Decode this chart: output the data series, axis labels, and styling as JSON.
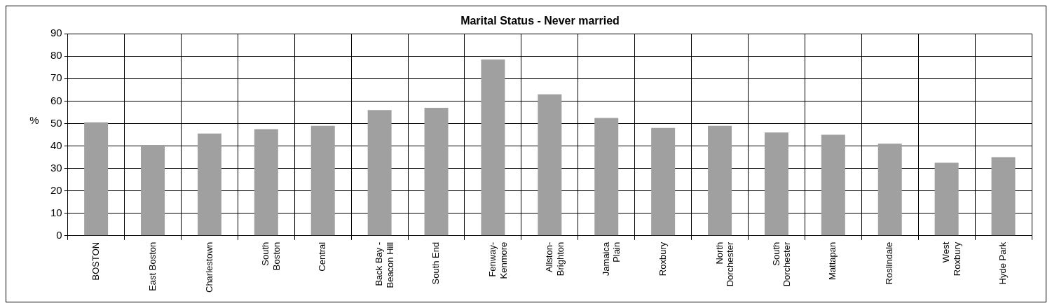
{
  "chart_data": {
    "type": "bar",
    "title": "Marital Status - Never married",
    "ylabel": "%",
    "categories": [
      "BOSTON",
      "East Boston",
      "Charlestown",
      "South Boston",
      "Central",
      "Back Bay - Beacon Hill",
      "South End",
      "Fenway-Kenmore",
      "Allston-Brighton",
      "Jamaica Plain",
      "Roxbury",
      "North Dorchester",
      "South Dorchester",
      "Mattapan",
      "Roslindale",
      "West Roxbury",
      "Hyde Park"
    ],
    "values": [
      50.5,
      40.5,
      45.5,
      47.5,
      49,
      56,
      57,
      78.5,
      63,
      52.5,
      48,
      49,
      46,
      45,
      41,
      32.5,
      35
    ],
    "color": "#a0a0a0",
    "ylim": [
      0,
      90
    ],
    "yticks": [
      0,
      10,
      20,
      30,
      40,
      50,
      60,
      70,
      80,
      90
    ],
    "grid": true,
    "legend": false
  }
}
